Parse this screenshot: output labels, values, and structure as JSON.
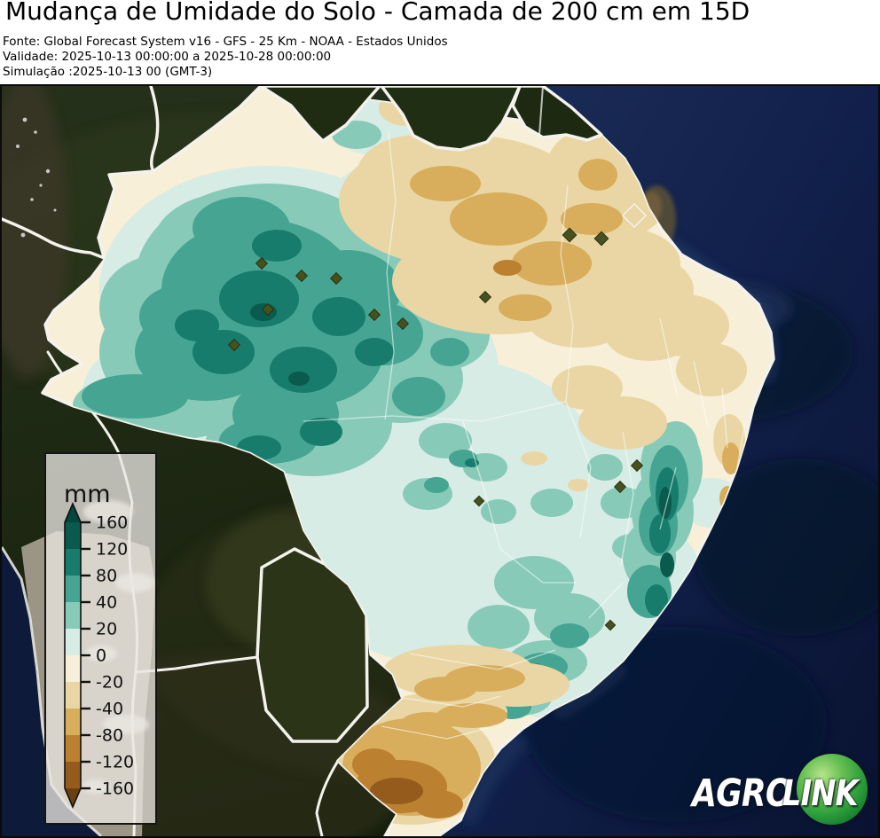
{
  "header": {
    "title": "Mudança de Umidade do Solo - Camada de 200 cm em 15D",
    "source_line": "Fonte: Global Forecast System v16 - GFS - 25 Km - NOAA - Estados Unidos",
    "validity_line": "Validade: 2025-10-13 00:00:00 a 2025-10-28 00:00:00",
    "simulation_line": "Simulação :2025-10-13 00 (GMT-3)"
  },
  "legend": {
    "unit_label": "mm",
    "tick_labels": [
      "160",
      "120",
      "80",
      "40",
      "20",
      "0",
      "-20",
      "-40",
      "-80",
      "-120",
      "-160"
    ],
    "bar_order": [
      "p120_160",
      "p80_120",
      "p40_80",
      "p20_40",
      "p0_20",
      "m20_0",
      "m40_20",
      "m80_40",
      "m120_80",
      "m160_120"
    ],
    "arrow_top": "gt160",
    "arrow_bottom": "lt160",
    "palette": {
      "gt160": "#02463c",
      "p120_160": "#0b5a4e",
      "p80_120": "#177c6b",
      "p40_80": "#46a492",
      "p20_40": "#88cab8",
      "p0_20": "#d7ece5",
      "m20_0": "#f7efd7",
      "m40_20": "#e9d6a4",
      "m80_40": "#d8ad5c",
      "m120_80": "#bb8030",
      "m160_120": "#945b1c",
      "lt160": "#6b400f"
    }
  },
  "map": {
    "ocean_color": "#0e1d40",
    "land_color": "#212d13",
    "border_color": "#f4f2ec"
  },
  "logo": {
    "left_text": "AGRO",
    "right_text": "LINK",
    "sphere_color": "#2fa03c"
  }
}
